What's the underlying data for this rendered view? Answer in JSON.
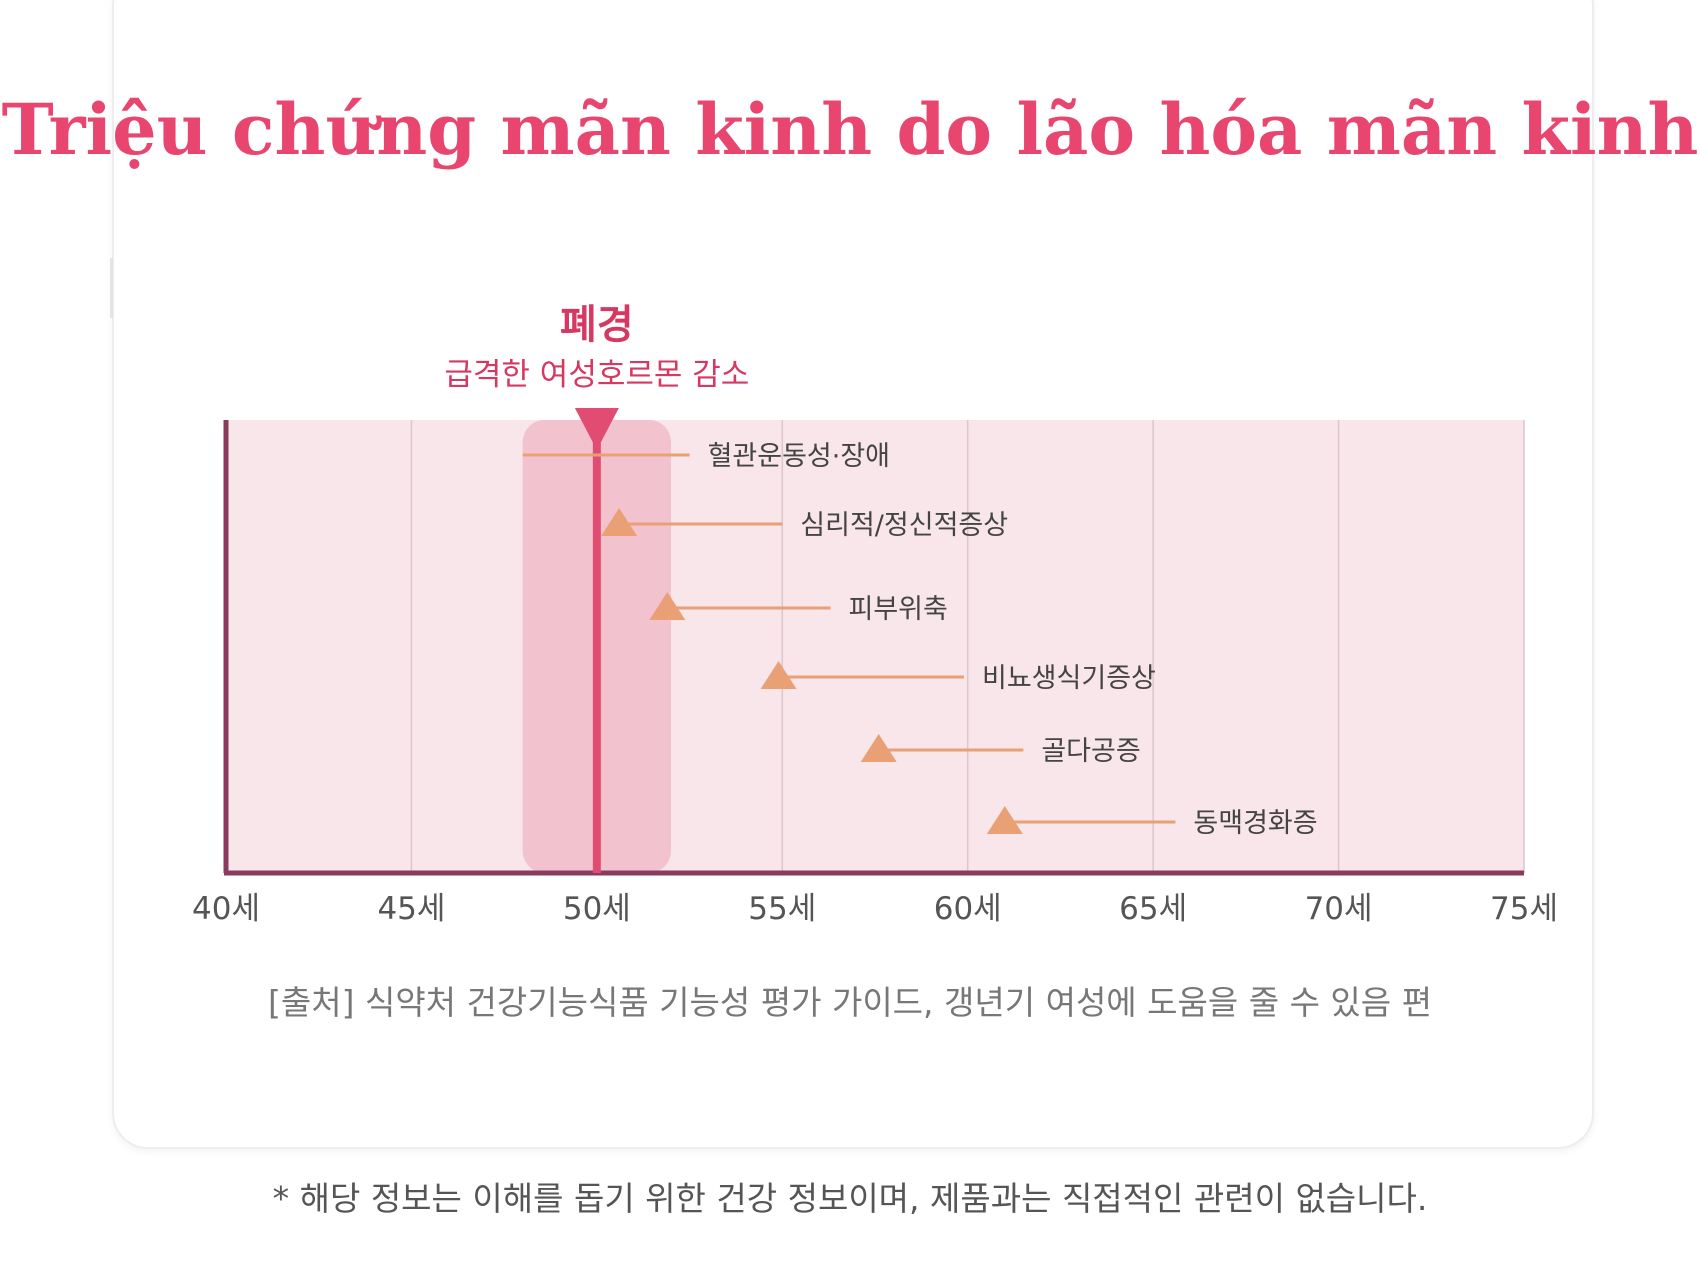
{
  "page": {
    "title": "Triệu chứng mãn kinh do lão hóa mãn kinh",
    "source": "[출처] 식약처 건강기능식품 기능성 평가 가이드, 갱년기 여성에 도움을 줄 수 있음 편",
    "footnote": "* 해당 정보는 이해를 돕기 위한 건강 정보이며, 제품과는 직접적인 관련이 없습니다."
  },
  "colors": {
    "title": "#e8456f",
    "plot_bg": "#f9e6ea",
    "band": "#f2c3cf",
    "menopause_line": "#e14d72",
    "axis": "#8a3a5c",
    "symptom": "#e8a074",
    "grid": "#dcc6cc"
  },
  "chart_data": {
    "type": "timeline",
    "x_axis": {
      "min": 40,
      "max": 75,
      "ticks": [
        40,
        45,
        50,
        55,
        60,
        65,
        70,
        75
      ],
      "tick_labels": [
        "40세",
        "45세",
        "50세",
        "55세",
        "60세",
        "65세",
        "70세",
        "75세"
      ]
    },
    "grid": true,
    "menopause": {
      "age": 50,
      "band": [
        48,
        52
      ],
      "label": "폐경",
      "sublabel": "급격한 여성호르몬 감소"
    },
    "symptoms": [
      {
        "name": "혈관운동성·장애",
        "start": 48,
        "end": 52.5,
        "marker": false
      },
      {
        "name": "심리적/정신적증상",
        "start": 50.6,
        "end": 55,
        "marker": true
      },
      {
        "name": "피부위축",
        "start": 51.9,
        "end": 56.3,
        "marker": true
      },
      {
        "name": "비뇨생식기증상",
        "start": 54.9,
        "end": 59.9,
        "marker": true
      },
      {
        "name": "골다공증",
        "start": 57.6,
        "end": 61.5,
        "marker": true
      },
      {
        "name": "동맥경화증",
        "start": 61,
        "end": 65.6,
        "marker": true
      }
    ]
  }
}
